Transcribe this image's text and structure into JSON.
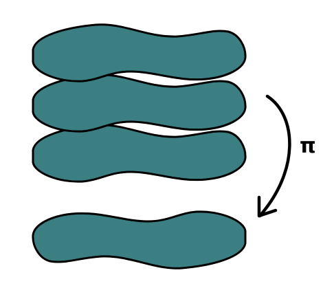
{
  "diagram": {
    "rotation_label": "π",
    "colors": {
      "shape_fill": "#3b7f82",
      "outline": "#000000",
      "background": "#ffffff"
    },
    "stack_count": 3,
    "result_count": 1
  }
}
